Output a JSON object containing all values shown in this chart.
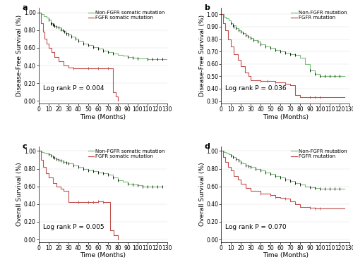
{
  "panels": [
    {
      "label": "a",
      "ylabel": "Disease-Free Survival (%)",
      "xlabel": "Time (Months)",
      "pvalue": "Log rank P = 0.004",
      "ylim": [
        -0.03,
        1.05
      ],
      "yticks": [
        0.0,
        0.2,
        0.4,
        0.6,
        0.8,
        1.0
      ],
      "xticks": [
        0,
        10,
        20,
        30,
        40,
        50,
        60,
        70,
        80,
        90,
        100,
        110,
        120,
        130
      ],
      "legend_labels": [
        "Non-FGFR somatic mutation",
        "FGFR somatic mutation"
      ],
      "green_line": {
        "times": [
          0,
          2,
          5,
          8,
          10,
          12,
          14,
          16,
          18,
          20,
          23,
          25,
          27,
          30,
          33,
          37,
          40,
          45,
          50,
          55,
          60,
          65,
          70,
          75,
          80,
          85,
          90,
          95,
          100,
          110,
          115,
          120,
          125,
          130
        ],
        "surv": [
          1.0,
          0.98,
          0.96,
          0.94,
          0.92,
          0.88,
          0.86,
          0.85,
          0.84,
          0.83,
          0.8,
          0.79,
          0.77,
          0.75,
          0.73,
          0.7,
          0.68,
          0.65,
          0.63,
          0.61,
          0.59,
          0.57,
          0.55,
          0.54,
          0.52,
          0.51,
          0.5,
          0.49,
          0.48,
          0.47,
          0.47,
          0.47,
          0.47,
          0.47
        ],
        "censor_times": [
          10,
          12,
          13,
          14,
          15,
          16,
          18,
          20,
          22,
          24,
          26,
          28,
          30,
          33,
          37,
          40,
          45,
          50,
          55,
          60,
          65,
          70,
          75,
          90,
          95,
          100,
          110,
          115,
          120,
          125
        ],
        "censor_surv": [
          0.92,
          0.88,
          0.87,
          0.86,
          0.86,
          0.85,
          0.84,
          0.83,
          0.81,
          0.8,
          0.78,
          0.76,
          0.75,
          0.73,
          0.7,
          0.68,
          0.65,
          0.63,
          0.61,
          0.59,
          0.57,
          0.55,
          0.54,
          0.5,
          0.49,
          0.48,
          0.47,
          0.47,
          0.47,
          0.47
        ]
      },
      "red_line": {
        "times": [
          0,
          2,
          4,
          6,
          8,
          10,
          13,
          16,
          20,
          25,
          30,
          35,
          70,
          75,
          78,
          80
        ],
        "surv": [
          1.0,
          0.88,
          0.78,
          0.7,
          0.65,
          0.6,
          0.55,
          0.5,
          0.45,
          0.4,
          0.38,
          0.37,
          0.37,
          0.1,
          0.05,
          0.0
        ],
        "censor_times": [
          35,
          50,
          60,
          70
        ],
        "censor_surv": [
          0.37,
          0.37,
          0.37,
          0.37
        ]
      }
    },
    {
      "label": "b",
      "ylabel": "Disease-Free Survival (%)",
      "xlabel": "Time (Months)",
      "pvalue": "Log rank P = 0.036",
      "ylim": [
        0.28,
        1.05
      ],
      "yticks": [
        0.3,
        0.4,
        0.5,
        0.6,
        0.7,
        0.8,
        0.9,
        1.0
      ],
      "xticks": [
        0,
        10,
        20,
        30,
        40,
        50,
        60,
        70,
        80,
        90,
        100,
        110,
        120,
        130
      ],
      "legend_labels": [
        "Non-FGFR mutation",
        "FGFR mutation"
      ],
      "green_line": {
        "times": [
          0,
          3,
          5,
          8,
          10,
          12,
          15,
          18,
          20,
          22,
          25,
          27,
          30,
          33,
          37,
          40,
          45,
          50,
          55,
          60,
          65,
          70,
          75,
          80,
          85,
          90,
          95,
          100,
          105,
          110,
          115,
          120,
          125
        ],
        "surv": [
          1.0,
          0.98,
          0.97,
          0.95,
          0.93,
          0.91,
          0.89,
          0.87,
          0.86,
          0.85,
          0.83,
          0.82,
          0.81,
          0.79,
          0.78,
          0.76,
          0.74,
          0.73,
          0.71,
          0.7,
          0.69,
          0.68,
          0.67,
          0.65,
          0.6,
          0.55,
          0.52,
          0.5,
          0.5,
          0.5,
          0.5,
          0.5,
          0.5
        ],
        "censor_times": [
          10,
          12,
          13,
          15,
          18,
          20,
          22,
          25,
          27,
          30,
          33,
          37,
          40,
          45,
          50,
          55,
          60,
          65,
          70,
          75,
          90,
          95,
          100,
          105,
          110,
          115,
          120
        ],
        "censor_surv": [
          0.93,
          0.91,
          0.9,
          0.89,
          0.87,
          0.86,
          0.85,
          0.83,
          0.82,
          0.81,
          0.79,
          0.78,
          0.76,
          0.74,
          0.73,
          0.71,
          0.7,
          0.69,
          0.68,
          0.67,
          0.55,
          0.52,
          0.5,
          0.5,
          0.5,
          0.5,
          0.5
        ]
      },
      "red_line": {
        "times": [
          0,
          2,
          4,
          7,
          10,
          13,
          17,
          20,
          24,
          28,
          30,
          40,
          47,
          55,
          60,
          65,
          70,
          75,
          80,
          90,
          95,
          100,
          125
        ],
        "surv": [
          1.0,
          0.93,
          0.87,
          0.8,
          0.74,
          0.68,
          0.63,
          0.58,
          0.53,
          0.5,
          0.47,
          0.46,
          0.46,
          0.45,
          0.45,
          0.44,
          0.43,
          0.35,
          0.33,
          0.33,
          0.33,
          0.33,
          0.33
        ],
        "censor_times": [
          40,
          47,
          55,
          65,
          90,
          95,
          100
        ],
        "censor_surv": [
          0.46,
          0.46,
          0.45,
          0.44,
          0.33,
          0.33,
          0.33
        ]
      }
    },
    {
      "label": "c",
      "ylabel": "Overall Survival (%)",
      "xlabel": "Time (Months)",
      "pvalue": "Log rank P = 0.005",
      "ylim": [
        -0.03,
        1.05
      ],
      "yticks": [
        0.0,
        0.2,
        0.4,
        0.6,
        0.8,
        1.0
      ],
      "xticks": [
        0,
        10,
        20,
        30,
        40,
        50,
        60,
        70,
        80,
        90,
        100,
        110,
        120,
        130
      ],
      "legend_labels": [
        "Non-FGFR somatic mutation",
        "FGFR somatic mutation"
      ],
      "green_line": {
        "times": [
          0,
          3,
          5,
          8,
          10,
          12,
          14,
          16,
          18,
          20,
          22,
          25,
          28,
          30,
          35,
          40,
          45,
          50,
          55,
          60,
          65,
          70,
          75,
          80,
          85,
          90,
          95,
          100,
          105,
          110,
          115,
          120,
          125
        ],
        "surv": [
          1.0,
          0.99,
          0.98,
          0.97,
          0.96,
          0.95,
          0.93,
          0.92,
          0.91,
          0.9,
          0.89,
          0.88,
          0.87,
          0.86,
          0.84,
          0.82,
          0.8,
          0.78,
          0.77,
          0.76,
          0.75,
          0.73,
          0.7,
          0.67,
          0.65,
          0.63,
          0.62,
          0.61,
          0.6,
          0.6,
          0.6,
          0.6,
          0.6
        ],
        "censor_times": [
          10,
          12,
          14,
          16,
          18,
          20,
          22,
          25,
          28,
          30,
          35,
          40,
          45,
          50,
          55,
          60,
          65,
          70,
          75,
          80,
          90,
          95,
          100,
          105,
          110,
          115,
          120,
          125
        ],
        "censor_surv": [
          0.96,
          0.95,
          0.93,
          0.92,
          0.91,
          0.9,
          0.89,
          0.88,
          0.87,
          0.86,
          0.84,
          0.82,
          0.8,
          0.78,
          0.77,
          0.76,
          0.75,
          0.73,
          0.7,
          0.67,
          0.63,
          0.62,
          0.61,
          0.6,
          0.6,
          0.6,
          0.6,
          0.6
        ]
      },
      "red_line": {
        "times": [
          0,
          2,
          4,
          7,
          10,
          14,
          18,
          22,
          25,
          30,
          35,
          40,
          50,
          55,
          60,
          65,
          68,
          72,
          76,
          80
        ],
        "surv": [
          1.0,
          0.9,
          0.82,
          0.75,
          0.7,
          0.64,
          0.6,
          0.57,
          0.55,
          0.42,
          0.42,
          0.42,
          0.42,
          0.42,
          0.43,
          0.42,
          0.42,
          0.1,
          0.05,
          0.0
        ],
        "censor_times": [
          40,
          50,
          55,
          60,
          65
        ],
        "censor_surv": [
          0.42,
          0.42,
          0.42,
          0.43,
          0.42
        ]
      }
    },
    {
      "label": "d",
      "ylabel": "Overall Survival (%)",
      "xlabel": "Time (Months)",
      "pvalue": "Log rank P = 0.070",
      "ylim": [
        -0.03,
        1.05
      ],
      "yticks": [
        0.0,
        0.2,
        0.4,
        0.6,
        0.8,
        1.0
      ],
      "xticks": [
        0,
        10,
        20,
        30,
        40,
        50,
        60,
        70,
        80,
        90,
        100,
        110,
        120,
        130
      ],
      "legend_labels": [
        "Non-FGFR mutation",
        "FGFR mutation"
      ],
      "green_line": {
        "times": [
          0,
          3,
          5,
          8,
          10,
          12,
          15,
          18,
          20,
          22,
          25,
          28,
          30,
          35,
          40,
          45,
          50,
          55,
          60,
          65,
          70,
          75,
          80,
          85,
          90,
          95,
          100,
          105,
          110,
          115,
          120,
          125
        ],
        "surv": [
          1.0,
          0.99,
          0.98,
          0.96,
          0.95,
          0.93,
          0.91,
          0.89,
          0.87,
          0.86,
          0.84,
          0.83,
          0.82,
          0.8,
          0.78,
          0.76,
          0.74,
          0.72,
          0.7,
          0.68,
          0.66,
          0.64,
          0.62,
          0.6,
          0.59,
          0.58,
          0.57,
          0.57,
          0.57,
          0.57,
          0.57,
          0.57
        ],
        "censor_times": [
          10,
          12,
          15,
          18,
          20,
          25,
          28,
          30,
          35,
          40,
          45,
          50,
          55,
          60,
          65,
          70,
          75,
          80,
          90,
          95,
          100,
          105,
          110,
          115,
          120
        ],
        "censor_surv": [
          0.95,
          0.93,
          0.91,
          0.89,
          0.87,
          0.84,
          0.83,
          0.82,
          0.8,
          0.78,
          0.76,
          0.74,
          0.72,
          0.7,
          0.68,
          0.66,
          0.64,
          0.62,
          0.59,
          0.58,
          0.57,
          0.57,
          0.57,
          0.57,
          0.57
        ]
      },
      "red_line": {
        "times": [
          0,
          2,
          4,
          7,
          10,
          13,
          17,
          20,
          25,
          30,
          40,
          50,
          55,
          60,
          65,
          70,
          75,
          80,
          90,
          95,
          100,
          125
        ],
        "surv": [
          1.0,
          0.93,
          0.88,
          0.82,
          0.78,
          0.72,
          0.68,
          0.63,
          0.58,
          0.55,
          0.52,
          0.5,
          0.48,
          0.47,
          0.46,
          0.43,
          0.4,
          0.37,
          0.36,
          0.35,
          0.35,
          0.35
        ],
        "censor_times": [
          40,
          50,
          55,
          65,
          90,
          95,
          100
        ],
        "censor_surv": [
          0.52,
          0.5,
          0.48,
          0.46,
          0.36,
          0.35,
          0.35
        ]
      }
    }
  ],
  "green_color": "#7dbf7d",
  "red_color": "#c0504d",
  "background_color": "#ffffff",
  "pvalue_fontsize": 6.5,
  "legend_fontsize": 5.0,
  "axis_label_fontsize": 6.5,
  "tick_fontsize": 5.5,
  "panel_label_fontsize": 8
}
